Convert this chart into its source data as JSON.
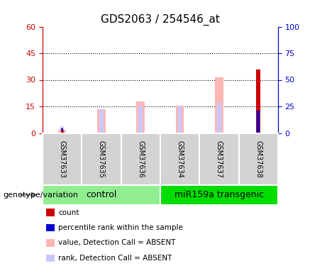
{
  "title": "GDS2063 / 254546_at",
  "samples": [
    "GSM37633",
    "GSM37635",
    "GSM37636",
    "GSM37634",
    "GSM37637",
    "GSM37638"
  ],
  "groups": [
    {
      "label": "control",
      "samples_idx": [
        0,
        1,
        2
      ],
      "color": "#90ee90"
    },
    {
      "label": "miR159a transgenic",
      "samples_idx": [
        3,
        4,
        5
      ],
      "color": "#00dd00"
    }
  ],
  "value_absent": [
    2.0,
    13.5,
    18.0,
    15.5,
    31.5,
    0.0
  ],
  "rank_absent": [
    4.0,
    13.0,
    15.5,
    15.5,
    17.0,
    0.0
  ],
  "count_bar": [
    0.0,
    0.0,
    0.0,
    0.0,
    0.0,
    36.0
  ],
  "percentile_bar": [
    4.5,
    0.0,
    0.0,
    0.0,
    0.0,
    21.0
  ],
  "small_red_bar": [
    1.5,
    0.0,
    0.0,
    0.0,
    0.0,
    1.0
  ],
  "ylim": [
    0,
    60
  ],
  "yticks_left": [
    0,
    15,
    30,
    45,
    60
  ],
  "yticks_right": [
    0,
    25,
    50,
    75,
    100
  ],
  "ylabel_left_color": "#cc0000",
  "ylabel_right_color": "#0000cc",
  "bar_width": 0.35,
  "value_color": "#ffb6b6",
  "rank_color": "#c8c8ff",
  "count_color": "#cc0000",
  "percentile_color": "#0000cc",
  "legend_items": [
    {
      "color": "#cc0000",
      "label": "count"
    },
    {
      "color": "#0000cc",
      "label": "percentile rank within the sample"
    },
    {
      "color": "#ffb6b6",
      "label": "value, Detection Call = ABSENT"
    },
    {
      "color": "#c8c8ff",
      "label": "rank, Detection Call = ABSENT"
    }
  ],
  "group_label_fontsize": 9,
  "title_fontsize": 11,
  "genotype_label": "genotype/variation",
  "plot_bg_color": "#ffffff",
  "tick_area_bg": "#d3d3d3"
}
